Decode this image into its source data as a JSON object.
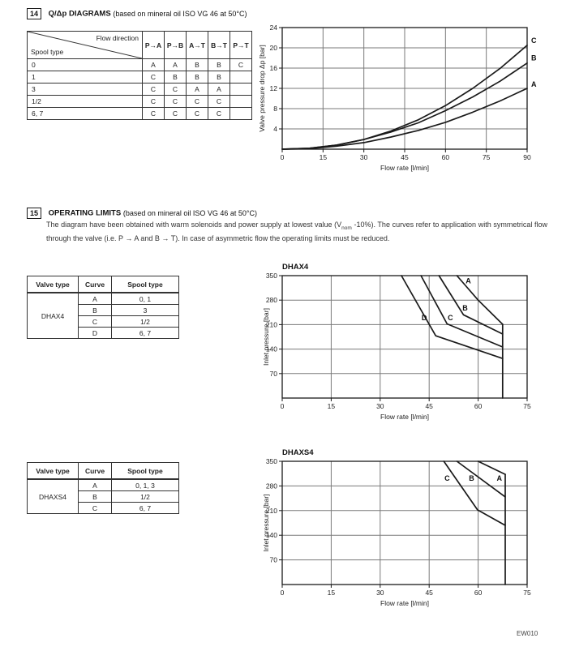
{
  "section14": {
    "num": "14",
    "title": "Q/Δp DIAGRAMS",
    "subtitle": "(based on mineral oil ISO VG 46 at 50°C)"
  },
  "flow_table": {
    "corner_top": "Flow direction",
    "corner_bottom": "Spool type",
    "col_headers": [
      "P→A",
      "P→B",
      "A→T",
      "B→T",
      "P→T"
    ],
    "rows": [
      {
        "spool": "0",
        "cells": [
          "A",
          "A",
          "B",
          "B",
          "C"
        ]
      },
      {
        "spool": "1",
        "cells": [
          "C",
          "B",
          "B",
          "B",
          ""
        ]
      },
      {
        "spool": "3",
        "cells": [
          "C",
          "C",
          "A",
          "A",
          ""
        ]
      },
      {
        "spool": "1/2",
        "cells": [
          "C",
          "C",
          "C",
          "C",
          ""
        ]
      },
      {
        "spool": "6, 7",
        "cells": [
          "C",
          "C",
          "C",
          "C",
          ""
        ]
      }
    ]
  },
  "section15": {
    "num": "15",
    "title": "OPERATING LIMITS",
    "subtitle": "(based on mineral oil ISO VG 46 at 50°C)",
    "para_pre": "The diagram have been obtained with warm solenoids and power supply at lowest value (V",
    "para_sub": "nom",
    "para_post": " -10%). The curves refer to application with symmetrical flow through the valve (i.e. P → A and B → T). In case of asymmetric flow the operating limits must be reduced."
  },
  "limits_tables": [
    {
      "headers": [
        "Valve type",
        "Curve",
        "Spool type"
      ],
      "valve": "DHAX4",
      "rows": [
        [
          "A",
          "0, 1"
        ],
        [
          "B",
          "3"
        ],
        [
          "C",
          "1/2"
        ],
        [
          "D",
          "6, 7"
        ]
      ]
    },
    {
      "headers": [
        "Valve type",
        "Curve",
        "Spool type"
      ],
      "valve": "DHAXS4",
      "rows": [
        [
          "A",
          "0, 1, 3"
        ],
        [
          "B",
          "1/2"
        ],
        [
          "C",
          "6, 7"
        ]
      ]
    }
  ],
  "chart_data": [
    {
      "id": "qdp",
      "type": "line",
      "title": "",
      "xlabel": "Flow rate [l/min]",
      "ylabel": "Valve pressure drop Δp [bar]",
      "xlim": [
        0,
        90
      ],
      "ylim": [
        0,
        24
      ],
      "xticks": [
        0,
        15,
        30,
        45,
        60,
        75,
        90
      ],
      "yticks": [
        4,
        8,
        12,
        16,
        20,
        24
      ],
      "grid": true,
      "legend_position": "right-outside",
      "series": [
        {
          "name": "A",
          "points": [
            [
              0,
              0
            ],
            [
              10,
              0.1
            ],
            [
              20,
              0.6
            ],
            [
              30,
              1.3
            ],
            [
              40,
              2.4
            ],
            [
              50,
              3.7
            ],
            [
              60,
              5.3
            ],
            [
              70,
              7.3
            ],
            [
              80,
              9.5
            ],
            [
              90,
              12.0
            ]
          ],
          "label_at": [
            91.5,
            12.3
          ]
        },
        {
          "name": "B",
          "points": [
            [
              0,
              0
            ],
            [
              10,
              0.2
            ],
            [
              20,
              0.8
            ],
            [
              30,
              1.9
            ],
            [
              40,
              3.4
            ],
            [
              50,
              5.2
            ],
            [
              60,
              7.6
            ],
            [
              70,
              10.3
            ],
            [
              80,
              13.4
            ],
            [
              90,
              17.0
            ]
          ],
          "label_at": [
            91.5,
            17.5
          ]
        },
        {
          "name": "C",
          "points": [
            [
              0,
              0
            ],
            [
              10,
              0.2
            ],
            [
              20,
              0.8
            ],
            [
              30,
              1.9
            ],
            [
              40,
              3.6
            ],
            [
              50,
              5.8
            ],
            [
              60,
              8.6
            ],
            [
              70,
              12.0
            ],
            [
              80,
              15.9
            ],
            [
              90,
              20.5
            ]
          ],
          "label_at": [
            91.5,
            21.0
          ]
        }
      ]
    },
    {
      "id": "dhax4",
      "type": "line",
      "title": "DHAX4",
      "xlabel": "Flow rate [l/min]",
      "ylabel": "Inlet pressure [bar]",
      "xlim": [
        0,
        75
      ],
      "ylim": [
        0,
        350
      ],
      "xticks": [
        0,
        15,
        30,
        45,
        60,
        75
      ],
      "yticks": [
        70,
        140,
        210,
        280,
        350
      ],
      "grid": true,
      "legend_position": "inline",
      "series": [
        {
          "name": "A",
          "points": [
            [
              53.5,
              350
            ],
            [
              60,
              280
            ],
            [
              67.5,
              211
            ]
          ],
          "label_at": [
            57,
            328
          ]
        },
        {
          "name": "B",
          "points": [
            [
              48,
              350
            ],
            [
              55.5,
              238
            ],
            [
              67.5,
              183
            ]
          ],
          "label_at": [
            56,
            250
          ]
        },
        {
          "name": "C",
          "points": [
            [
              42.5,
              350
            ],
            [
              50.5,
              212
            ],
            [
              67.5,
              146
            ]
          ],
          "label_at": [
            51.5,
            222
          ]
        },
        {
          "name": "D",
          "points": [
            [
              36.5,
              350
            ],
            [
              47,
              178
            ],
            [
              67.5,
              113
            ]
          ],
          "label_at": [
            43.5,
            222
          ]
        },
        {
          "name": "max-flow-limit",
          "points": [
            [
              67.5,
              211
            ],
            [
              67.5,
              0
            ]
          ]
        }
      ]
    },
    {
      "id": "dhaxs4",
      "type": "line",
      "title": "DHAXS4",
      "xlabel": "Flow rate [l/min]",
      "ylabel": "Inlet pressure [bar]",
      "xlim": [
        0,
        75
      ],
      "ylim": [
        0,
        350
      ],
      "xticks": [
        0,
        15,
        30,
        45,
        60,
        75
      ],
      "yticks": [
        70,
        140,
        210,
        280,
        350
      ],
      "grid": true,
      "legend_position": "inline",
      "series": [
        {
          "name": "A",
          "points": [
            [
              60,
              350
            ],
            [
              68.3,
              313
            ]
          ],
          "label_at": [
            66.5,
            295
          ]
        },
        {
          "name": "B",
          "points": [
            [
              53.5,
              350
            ],
            [
              68.3,
              249
            ]
          ],
          "label_at": [
            58,
            295
          ]
        },
        {
          "name": "C",
          "points": [
            [
              49.5,
              350
            ],
            [
              59.8,
              212
            ],
            [
              68.3,
              168
            ]
          ],
          "label_at": [
            50.5,
            295
          ]
        },
        {
          "name": "max-flow-limit",
          "points": [
            [
              68.3,
              313
            ],
            [
              68.3,
              0
            ]
          ]
        }
      ]
    }
  ],
  "footer": {
    "code": "EW010"
  }
}
